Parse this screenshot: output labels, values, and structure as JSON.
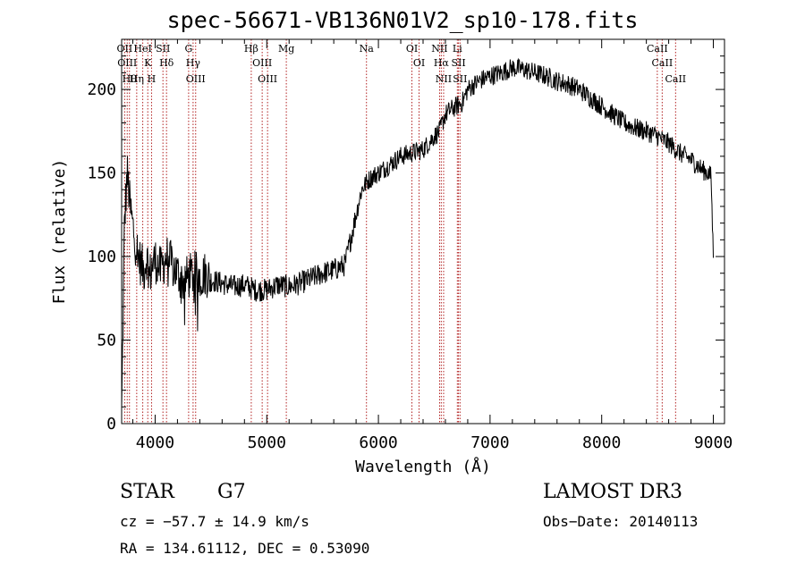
{
  "chart_data": {
    "type": "line",
    "title": "spec-56671-VB136N01V2_sp10-178.fits",
    "xlabel": "Wavelength (Å)",
    "ylabel": "Flux (relative)",
    "xlim": [
      3700,
      9100
    ],
    "ylim": [
      0,
      230
    ],
    "xticks": [
      4000,
      5000,
      6000,
      7000,
      8000,
      9000
    ],
    "yticks": [
      0,
      50,
      100,
      150,
      200
    ],
    "line_color": "#000000",
    "marker_color": "#b22222",
    "series": [
      {
        "name": "flux",
        "x": [
          3700,
          3725,
          3750,
          3775,
          3800,
          3825,
          3850,
          3875,
          3900,
          3925,
          3950,
          3975,
          4000,
          4050,
          4100,
          4150,
          4200,
          4250,
          4300,
          4350,
          4400,
          4450,
          4500,
          4600,
          4700,
          4800,
          4900,
          5000,
          5100,
          5200,
          5300,
          5400,
          5500,
          5600,
          5700,
          5750,
          5800,
          5850,
          5900,
          5950,
          6000,
          6100,
          6200,
          6300,
          6400,
          6500,
          6550,
          6562,
          6600,
          6650,
          6700,
          6750,
          6800,
          6900,
          7000,
          7100,
          7200,
          7300,
          7400,
          7500,
          7600,
          7700,
          7800,
          7900,
          8000,
          8100,
          8200,
          8300,
          8400,
          8500,
          8540,
          8600,
          8650,
          8700,
          8750,
          8800,
          8850,
          8900,
          8950,
          8980,
          9000
        ],
        "y": [
          5,
          120,
          150,
          130,
          118,
          108,
          100,
          95,
          92,
          100,
          88,
          95,
          98,
          92,
          100,
          95,
          90,
          85,
          88,
          90,
          88,
          90,
          86,
          84,
          82,
          83,
          80,
          80,
          83,
          82,
          84,
          87,
          90,
          92,
          95,
          110,
          125,
          140,
          145,
          148,
          150,
          155,
          160,
          162,
          164,
          172,
          175,
          178,
          185,
          188,
          190,
          192,
          200,
          205,
          208,
          210,
          213,
          212,
          210,
          208,
          205,
          203,
          200,
          195,
          190,
          185,
          180,
          177,
          175,
          172,
          170,
          168,
          165,
          162,
          160,
          158,
          155,
          152,
          150,
          148,
          100
        ]
      }
    ],
    "line_markers": [
      {
        "x": 3727,
        "label": "OII"
      },
      {
        "x": 3750,
        "label": "OIII"
      },
      {
        "x": 3770,
        "label": "Hθ"
      },
      {
        "x": 3835,
        "label": "Hη"
      },
      {
        "x": 3889,
        "label": "HeI"
      },
      {
        "x": 3934,
        "label": "K"
      },
      {
        "x": 3968,
        "label": "H"
      },
      {
        "x": 4070,
        "label": "SII"
      },
      {
        "x": 4102,
        "label": "Hδ"
      },
      {
        "x": 4300,
        "label": "G"
      },
      {
        "x": 4340,
        "label": "Hγ"
      },
      {
        "x": 4363,
        "label": "OIII"
      },
      {
        "x": 4861,
        "label": "Hβ"
      },
      {
        "x": 4959,
        "label": "OIII"
      },
      {
        "x": 5007,
        "label": "OIII"
      },
      {
        "x": 5175,
        "label": "Mg"
      },
      {
        "x": 5893,
        "label": "Na"
      },
      {
        "x": 6300,
        "label": "OI"
      },
      {
        "x": 6364,
        "label": "OI"
      },
      {
        "x": 6548,
        "label": "NII"
      },
      {
        "x": 6563,
        "label": "Hα"
      },
      {
        "x": 6584,
        "label": "NII"
      },
      {
        "x": 6707,
        "label": "Li"
      },
      {
        "x": 6717,
        "label": "SII"
      },
      {
        "x": 6731,
        "label": "SII"
      },
      {
        "x": 8498,
        "label": "CaII"
      },
      {
        "x": 8542,
        "label": "CaII"
      },
      {
        "x": 8662,
        "label": "CaII"
      }
    ]
  },
  "info": {
    "class": "STAR",
    "subclass": "G7",
    "survey": "LAMOST DR3",
    "cz": "cz = −57.7 ± 14.9 km/s",
    "obs_date": "Obs−Date: 20140113",
    "coords": "RA = 134.61112, DEC =    0.53090"
  }
}
